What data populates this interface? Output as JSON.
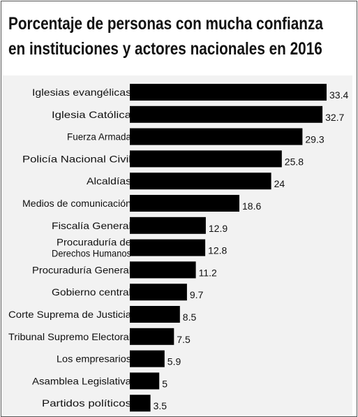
{
  "chart_data": {
    "type": "bar",
    "orientation": "horizontal",
    "title_lines": [
      "Porcentaje de personas con mucha confianza",
      "en instituciones y actores nacionales en 2016"
    ],
    "categories": [
      [
        "Iglesias evangélicas"
      ],
      [
        "Iglesia Católica"
      ],
      [
        "Fuerza Armada"
      ],
      [
        "Policía Nacional Civil"
      ],
      [
        "Alcaldías"
      ],
      [
        "Medios de comunicación"
      ],
      [
        "Fiscalía General"
      ],
      [
        "Procuraduría de",
        "Derechos Humanos"
      ],
      [
        "Procuraduría General"
      ],
      [
        "Gobierno central"
      ],
      [
        "Corte Suprema de Justicia"
      ],
      [
        "Tribunal Supremo Electoral"
      ],
      [
        "Los empresarios"
      ],
      [
        "Asamblea Legislativa"
      ],
      [
        "Partidos políticos"
      ]
    ],
    "values": [
      33.4,
      32.7,
      29.3,
      25.8,
      24,
      18.6,
      12.9,
      12.8,
      11.2,
      9.7,
      8.5,
      7.5,
      5.9,
      5,
      3.5
    ],
    "value_labels": [
      "33.4",
      "32.7",
      "29.3",
      "25.8",
      "24",
      "18.6",
      "12.9",
      "12.8",
      "11.2",
      "9.7",
      "8.5",
      "7.5",
      "5.9",
      "5",
      "3.5"
    ],
    "xlim": [
      0,
      33.4
    ],
    "grid": false,
    "legend": "none",
    "colors": {
      "bar": "#000000",
      "panel": "#f2f2f2",
      "text": "#111111"
    }
  }
}
